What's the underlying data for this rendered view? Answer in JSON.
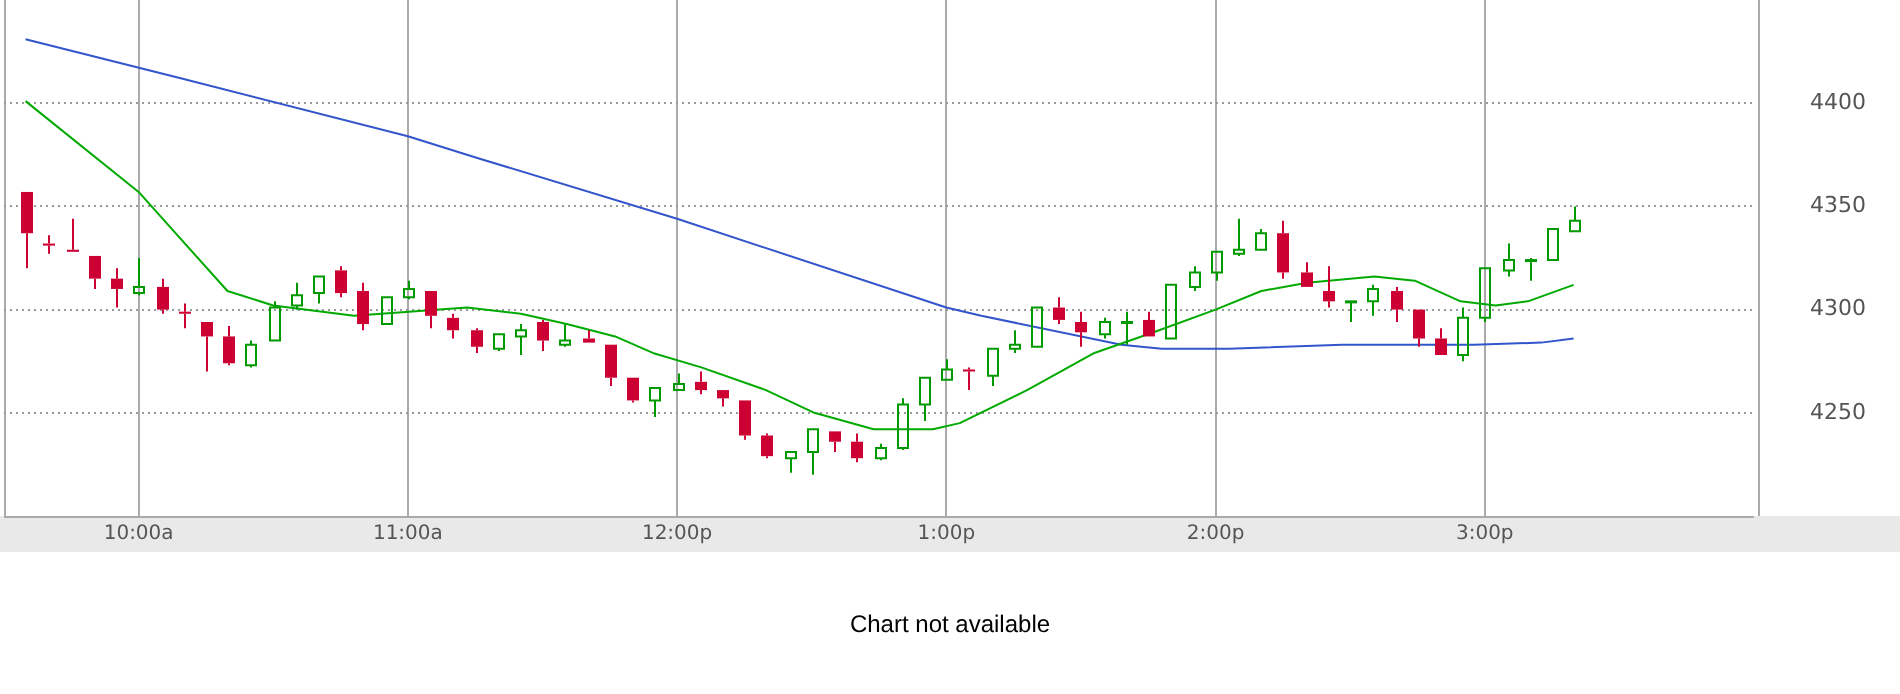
{
  "chart_data": {
    "type": "candlestick",
    "x": [
      9.5833,
      9.6667,
      9.75,
      9.8333,
      9.9167,
      10,
      10.0833,
      10.1667,
      10.25,
      10.3333,
      10.4167,
      10.5,
      10.5833,
      10.6667,
      10.75,
      10.8333,
      10.9167,
      11,
      11.0833,
      11.1667,
      11.25,
      11.3333,
      11.4167,
      11.5,
      11.5833,
      11.6667,
      11.75,
      11.8333,
      11.9167,
      12,
      12.0833,
      12.1667,
      12.25,
      12.3333,
      12.4167,
      12.5,
      12.5833,
      12.6667,
      12.75,
      12.8333,
      12.9167,
      13,
      13.0833,
      13.1667,
      13.25,
      13.3333,
      13.4167,
      13.5,
      13.5833,
      13.6667,
      13.75,
      13.8333,
      13.9167,
      14,
      14.0833,
      14.1667,
      14.25,
      14.3333,
      14.4167,
      14.5,
      14.5833,
      14.6667,
      14.75,
      14.8333,
      14.9167,
      15,
      15.0833,
      15.1667,
      15.25,
      15.3333
    ],
    "ohlc": [
      [
        4357,
        4357,
        4320,
        4337
      ],
      [
        4332,
        4336,
        4327,
        4331
      ],
      [
        4329,
        4344,
        4328,
        4328
      ],
      [
        4326,
        4326,
        4310,
        4315
      ],
      [
        4315,
        4320,
        4301,
        4310
      ],
      [
        4308,
        4325,
        4307,
        4311
      ],
      [
        4311,
        4315,
        4298,
        4300
      ],
      [
        4299,
        4303,
        4291,
        4298
      ],
      [
        4294,
        4294,
        4270,
        4287
      ],
      [
        4287,
        4292,
        4273,
        4274
      ],
      [
        4273,
        4285,
        4272,
        4283
      ],
      [
        4285,
        4304,
        4285,
        4301
      ],
      [
        4302,
        4313,
        4300,
        4307
      ],
      [
        4308,
        4316,
        4303,
        4316
      ],
      [
        4319,
        4321,
        4306,
        4308
      ],
      [
        4309,
        4313,
        4290,
        4293
      ],
      [
        4293,
        4306,
        4293,
        4306
      ],
      [
        4306,
        4314,
        4305,
        4310
      ],
      [
        4309,
        4309,
        4291,
        4297
      ],
      [
        4296,
        4298,
        4286,
        4290
      ],
      [
        4290,
        4291,
        4279,
        4282
      ],
      [
        4281,
        4288,
        4280,
        4288
      ],
      [
        4287,
        4293,
        4278,
        4290
      ],
      [
        4294,
        4295,
        4280,
        4285
      ],
      [
        4283,
        4293,
        4282,
        4285
      ],
      [
        4286,
        4290,
        4284,
        4284
      ],
      [
        4283,
        4283,
        4263,
        4267
      ],
      [
        4267,
        4267,
        4255,
        4256
      ],
      [
        4256,
        4262,
        4248,
        4262
      ],
      [
        4261,
        4269,
        4261,
        4264
      ],
      [
        4265,
        4270,
        4259,
        4261
      ],
      [
        4261,
        4261,
        4253,
        4257
      ],
      [
        4256,
        4256,
        4237,
        4239
      ],
      [
        4239,
        4240,
        4228,
        4229
      ],
      [
        4228,
        4231,
        4221,
        4231
      ],
      [
        4231,
        4242,
        4220,
        4242
      ],
      [
        4241,
        4241,
        4231,
        4236
      ],
      [
        4236,
        4240,
        4226,
        4228
      ],
      [
        4228,
        4235,
        4227,
        4233
      ],
      [
        4233,
        4257,
        4232,
        4254
      ],
      [
        4254,
        4267,
        4246,
        4267
      ],
      [
        4266,
        4276,
        4266,
        4271
      ],
      [
        4271,
        4272,
        4261,
        4270
      ],
      [
        4268,
        4281,
        4263,
        4281
      ],
      [
        4281,
        4290,
        4279,
        4283
      ],
      [
        4282,
        4301,
        4282,
        4301
      ],
      [
        4301,
        4306,
        4293,
        4295
      ],
      [
        4294,
        4299,
        4282,
        4289
      ],
      [
        4288,
        4296,
        4286,
        4294
      ],
      [
        4294,
        4299,
        4283,
        4294
      ],
      [
        4295,
        4299,
        4287,
        4287
      ],
      [
        4286,
        4312,
        4286,
        4312
      ],
      [
        4311,
        4321,
        4309,
        4318
      ],
      [
        4318,
        4328,
        4314,
        4328
      ],
      [
        4327,
        4344,
        4326,
        4329
      ],
      [
        4329,
        4339,
        4329,
        4337
      ],
      [
        4337,
        4343,
        4315,
        4318
      ],
      [
        4318,
        4323,
        4311,
        4311
      ],
      [
        4309,
        4321,
        4301,
        4304
      ],
      [
        4304,
        4304,
        4294,
        4304
      ],
      [
        4304,
        4312,
        4297,
        4310
      ],
      [
        4309,
        4311,
        4294,
        4300
      ],
      [
        4300,
        4300,
        4282,
        4286
      ],
      [
        4286,
        4291,
        4278,
        4278
      ],
      [
        4278,
        4301,
        4275,
        4296
      ],
      [
        4296,
        4320,
        4294,
        4320
      ],
      [
        4319,
        4332,
        4316,
        4324
      ],
      [
        4323,
        4325,
        4314,
        4324
      ],
      [
        4324,
        4339,
        4324,
        4339
      ],
      [
        4338,
        4350,
        4338,
        4343
      ]
    ],
    "colors": [
      "#cc0033",
      "#cc0033",
      "#cc0033",
      "#cc0033",
      "#cc0033",
      "#009900",
      "#cc0033",
      "#cc0033",
      "#cc0033",
      "#cc0033",
      "#009900",
      "#009900",
      "#009900",
      "#009900",
      "#cc0033",
      "#cc0033",
      "#009900",
      "#009900",
      "#cc0033",
      "#cc0033",
      "#cc0033",
      "#009900",
      "#009900",
      "#cc0033",
      "#009900",
      "#cc0033",
      "#cc0033",
      "#cc0033",
      "#009900",
      "#009900",
      "#cc0033",
      "#cc0033",
      "#cc0033",
      "#cc0033",
      "#009900",
      "#009900",
      "#cc0033",
      "#cc0033",
      "#009900",
      "#009900",
      "#009900",
      "#009900",
      "#cc0033",
      "#009900",
      "#009900",
      "#009900",
      "#cc0033",
      "#cc0033",
      "#009900",
      "#009900",
      "#cc0033",
      "#009900",
      "#009900",
      "#009900",
      "#009900",
      "#009900",
      "#cc0033",
      "#cc0033",
      "#cc0033",
      "#009900",
      "#009900",
      "#cc0033",
      "#cc0033",
      "#cc0033",
      "#009900",
      "#009900",
      "#009900",
      "#009900",
      "#009900",
      "#009900"
    ],
    "series": [
      {
        "type": "line",
        "color": "#00aa00",
        "x": [
          9.58,
          10.0,
          10.33,
          10.5,
          10.8,
          11.22,
          11.42,
          11.59,
          11.77,
          11.91,
          12.09,
          12.33,
          12.51,
          12.73,
          12.95,
          13.05,
          13.3,
          13.55,
          13.77,
          14.0,
          14.17,
          14.34,
          14.59,
          14.74,
          14.91,
          15.04,
          15.16,
          15.33
        ],
        "values": [
          4401,
          4357,
          4309,
          4302,
          4297,
          4301,
          4298,
          4293,
          4287,
          4279,
          4272,
          4261,
          4250,
          4242,
          4242,
          4245,
          4261,
          4279,
          4289,
          4300,
          4309,
          4313,
          4316,
          4314,
          4304,
          4302,
          4304,
          4312
        ]
      },
      {
        "type": "line",
        "color": "#3355cc",
        "x": [
          9.58,
          10.16,
          11.0,
          11.27,
          12.0,
          13.0,
          13.13,
          13.65,
          13.8,
          14.05,
          14.47,
          14.79,
          14.96,
          15.21,
          15.33
        ],
        "values": [
          4431,
          4412,
          4384,
          4373,
          4344,
          4301,
          4297,
          4283,
          4281,
          4281,
          4283,
          4283,
          4283,
          4284,
          4286
        ]
      }
    ],
    "xlim": [
      9.5,
      16
    ],
    "xticks": [
      {
        "value": 10,
        "label": "10:00a"
      },
      {
        "value": 11,
        "label": "11:00a"
      },
      {
        "value": 12,
        "label": "12:00p"
      },
      {
        "value": 13,
        "label": "1:00p"
      },
      {
        "value": 14,
        "label": "2:00p"
      },
      {
        "value": 15,
        "label": "3:00p"
      }
    ],
    "ylim": [
      4200,
      4450
    ],
    "yticks": [
      4250,
      4300,
      4350,
      4400
    ],
    "grid": true,
    "annotations": [
      "Chart not available"
    ]
  }
}
